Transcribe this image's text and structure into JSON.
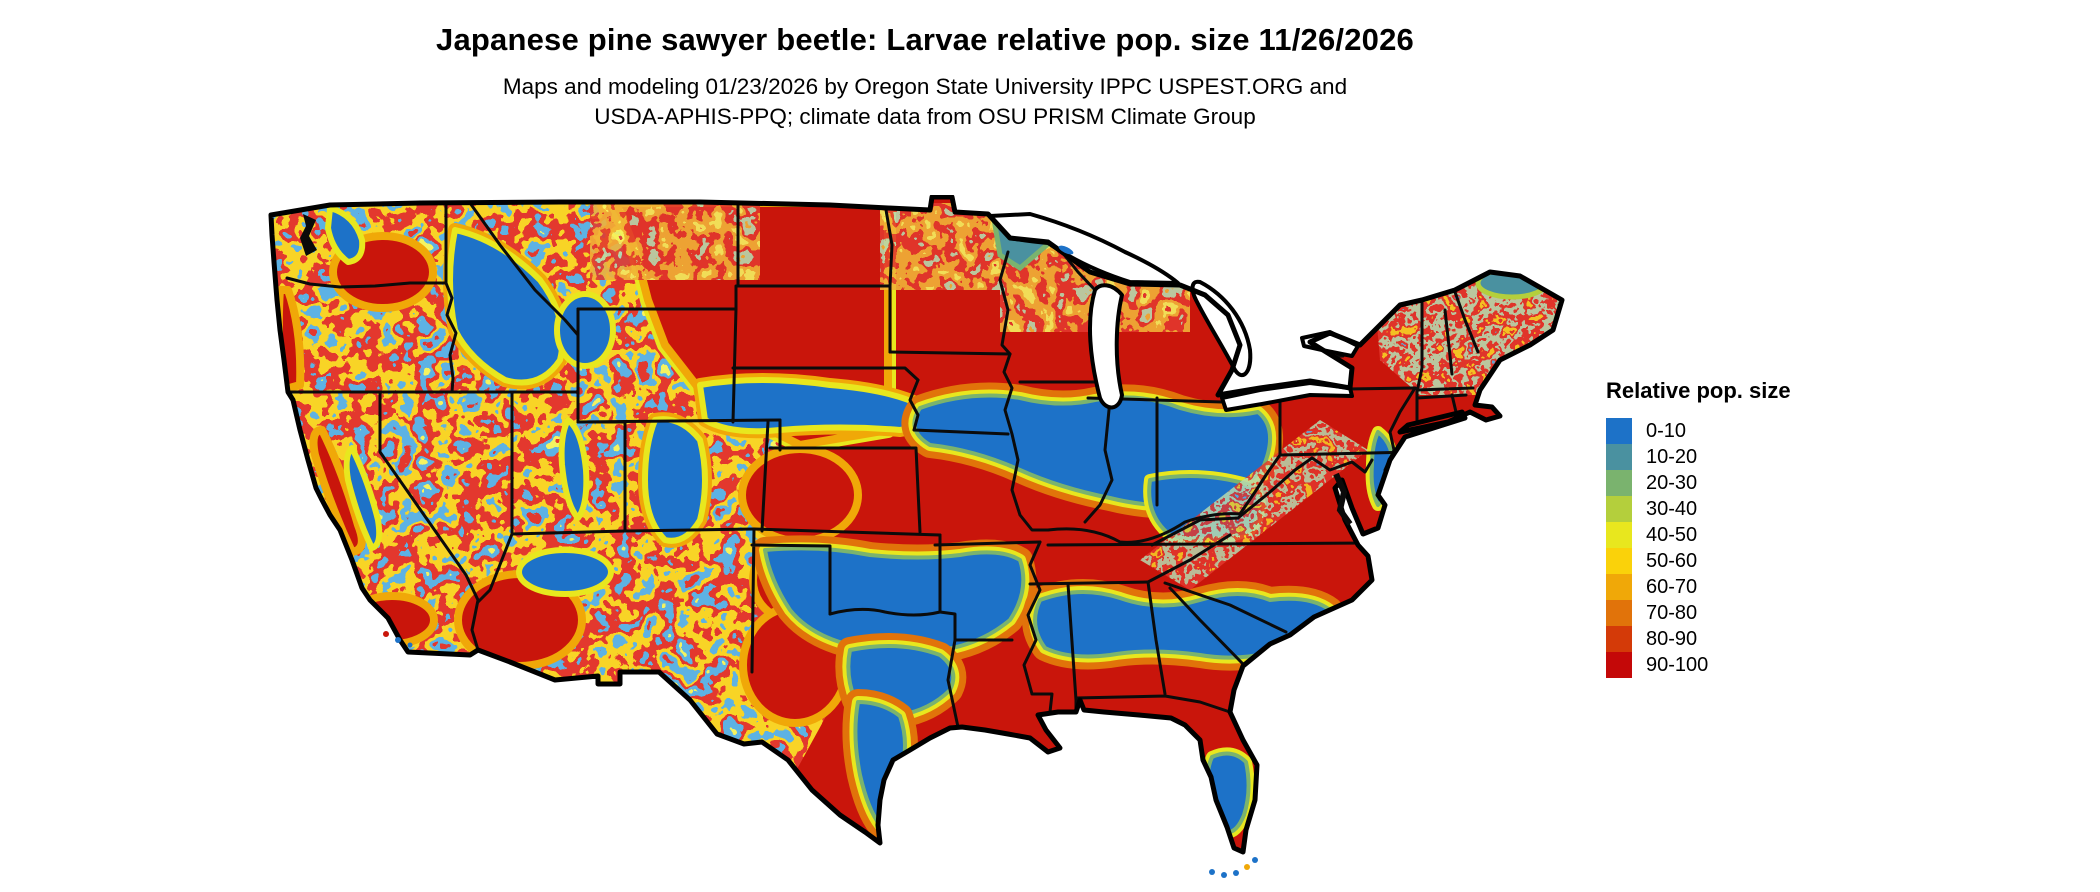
{
  "header": {
    "title": "Japanese pine sawyer beetle: Larvae relative pop. size 11/26/2026",
    "subtitle_line1": "Maps and modeling 01/23/2026 by Oregon State University IPPC USPEST.ORG and",
    "subtitle_line2": "USDA-APHIS-PPQ; climate data from OSU PRISM Climate Group"
  },
  "legend": {
    "title": "Relative pop. size",
    "items": [
      {
        "label": "0-10",
        "color": "#1d72c8"
      },
      {
        "label": "10-20",
        "color": "#4a91a0"
      },
      {
        "label": "20-30",
        "color": "#7ab36e"
      },
      {
        "label": "30-40",
        "color": "#b4cf3c"
      },
      {
        "label": "40-50",
        "color": "#e8e71e"
      },
      {
        "label": "50-60",
        "color": "#fad20a"
      },
      {
        "label": "60-70",
        "color": "#f0a808"
      },
      {
        "label": "70-80",
        "color": "#e1730a"
      },
      {
        "label": "80-90",
        "color": "#d43a08"
      },
      {
        "label": "90-100",
        "color": "#c40808"
      }
    ]
  },
  "map": {
    "region": "Contiguous United States",
    "kind": "raster choropleth of relative larvae population size",
    "border_color": "#000000",
    "water_color": "#ffffff",
    "dominant_class": "90-100",
    "dominant_color": "#c9150b",
    "low_class_color": "#1d72c8",
    "notable_low_regions": "Rocky Mountains, Sierra Nevada, Cascades, central Midwest belt (IA-IL-IN-OH), Kansas-Oklahoma-north Texas, Southeast coastal plain, New Jersey/Delmarva coast, central Florida, south Texas coast",
    "notable_high_regions": "Northern plains (MT, ND, SD, MN, WI, MI), Northeast, mid-South (MO, AR, TN, KY), Texas interior, Gulf coast, most of Florida"
  },
  "chart_data": {
    "type": "heatmap",
    "title": "Japanese pine sawyer beetle: Larvae relative pop. size 11/26/2026",
    "legend_title": "Relative pop. size",
    "bins": [
      "0-10",
      "10-20",
      "20-30",
      "30-40",
      "40-50",
      "50-60",
      "60-70",
      "70-80",
      "80-90",
      "90-100"
    ],
    "bin_colors": [
      "#1d72c8",
      "#4a91a0",
      "#7ab36e",
      "#b4cf3c",
      "#e8e71e",
      "#fad20a",
      "#f0a808",
      "#e1730a",
      "#d43a08",
      "#c40808"
    ],
    "value_range": [
      0,
      100
    ],
    "legend_position": "right"
  }
}
